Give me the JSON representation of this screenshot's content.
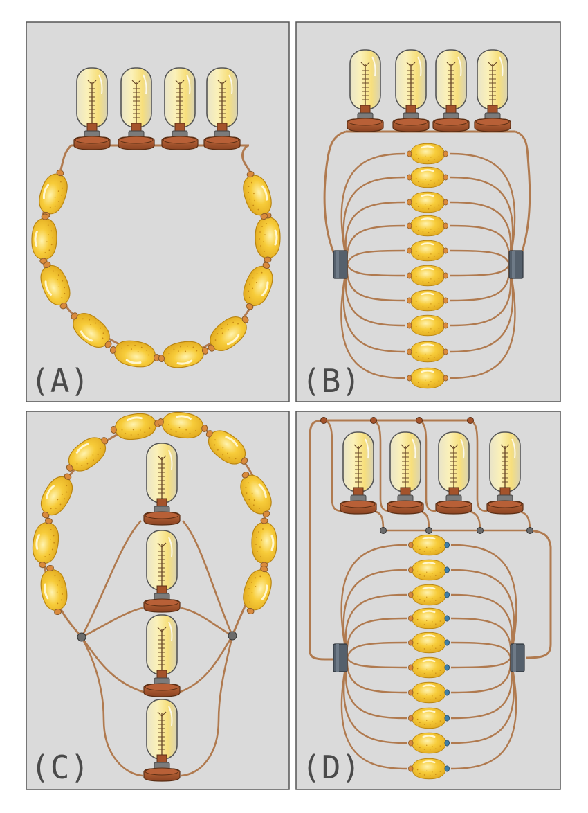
{
  "panels": [
    {
      "id": "A",
      "label": "(A)"
    },
    {
      "id": "B",
      "label": "(B)"
    },
    {
      "id": "C",
      "label": "(C)"
    },
    {
      "id": "D",
      "label": "(D)"
    }
  ],
  "colors": {
    "panel_bg": "#dadada",
    "panel_border": "#555555",
    "wire": "#b07a4f",
    "wire_dark": "#7a5132",
    "lemon": "#f7cc3a",
    "lemon_light": "#fde68a",
    "lemon_dark": "#d9a21b",
    "bulb_glow": "#fbe7a0",
    "bulb_glass": "#f6f0d2",
    "bulb_base": "#a4532b",
    "junction_block": "#55606c",
    "node": "#6b6b6b",
    "blue_tip": "#3f7fa8"
  },
  "components": {
    "lemon": "lemon-cell",
    "bulb": "light-bulb",
    "junction": "junction-block",
    "node": "wire-node"
  }
}
